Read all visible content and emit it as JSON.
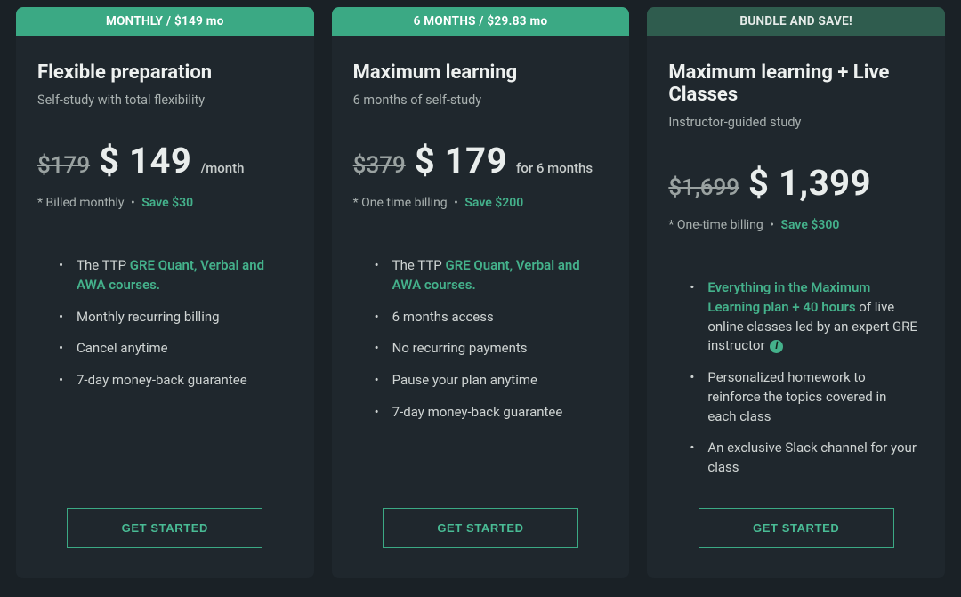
{
  "colors": {
    "page_bg": "#1a2126",
    "card_bg": "#1f272d",
    "header_bright": "#3ba984",
    "header_dark": "#2f5c4e",
    "accent": "#44b18b",
    "text_primary": "#eef1f0",
    "text_muted": "#a9b1b0"
  },
  "plans": [
    {
      "header": "MONTHLY / $149 mo",
      "header_style": "bright",
      "title": "Flexible preparation",
      "subtitle": "Self-study with total flexibility",
      "old_price": "$179",
      "new_price": "$ 149",
      "price_suffix": "/month",
      "billing_note": "* Billed monthly",
      "save": "Save $30",
      "features": [
        {
          "prefix": "The TTP ",
          "highlight": "GRE Quant, Verbal and AWA courses.",
          "rest": ""
        },
        {
          "prefix": "Monthly recurring billing",
          "highlight": "",
          "rest": ""
        },
        {
          "prefix": "Cancel anytime",
          "highlight": "",
          "rest": ""
        },
        {
          "prefix": "7-day money-back guarantee",
          "highlight": "",
          "rest": ""
        }
      ],
      "cta": "GET STARTED"
    },
    {
      "header": "6 MONTHS / $29.83 mo",
      "header_style": "bright",
      "title": "Maximum learning",
      "subtitle": "6 months of self-study",
      "old_price": "$379",
      "new_price": "$ 179",
      "price_suffix": "for 6 months",
      "billing_note": "* One time billing",
      "save": "Save $200",
      "features": [
        {
          "prefix": "The TTP ",
          "highlight": "GRE Quant, Verbal and AWA courses.",
          "rest": ""
        },
        {
          "prefix": "6 months access",
          "highlight": "",
          "rest": ""
        },
        {
          "prefix": "No recurring payments",
          "highlight": "",
          "rest": ""
        },
        {
          "prefix": "Pause your plan anytime",
          "highlight": "",
          "rest": ""
        },
        {
          "prefix": "7-day money-back guarantee",
          "highlight": "",
          "rest": ""
        }
      ],
      "cta": "GET STARTED"
    },
    {
      "header": "BUNDLE AND SAVE!",
      "header_style": "dark",
      "title": "Maximum learning + Live Classes",
      "subtitle": "Instructor-guided study",
      "old_price": "$1,699",
      "new_price": "$ 1,399",
      "price_suffix": "",
      "billing_note": "* One-time billing",
      "save": "Save $300",
      "features": [
        {
          "prefix": "",
          "highlight": "Everything in the Maximum Learning plan + 40 hours",
          "rest": " of live online classes led by an expert GRE instructor",
          "info": true
        },
        {
          "prefix": "Personalized homework to reinforce the topics covered in each class",
          "highlight": "",
          "rest": ""
        },
        {
          "prefix": "An exclusive Slack channel for your class",
          "highlight": "",
          "rest": ""
        }
      ],
      "cta": "GET STARTED"
    }
  ]
}
